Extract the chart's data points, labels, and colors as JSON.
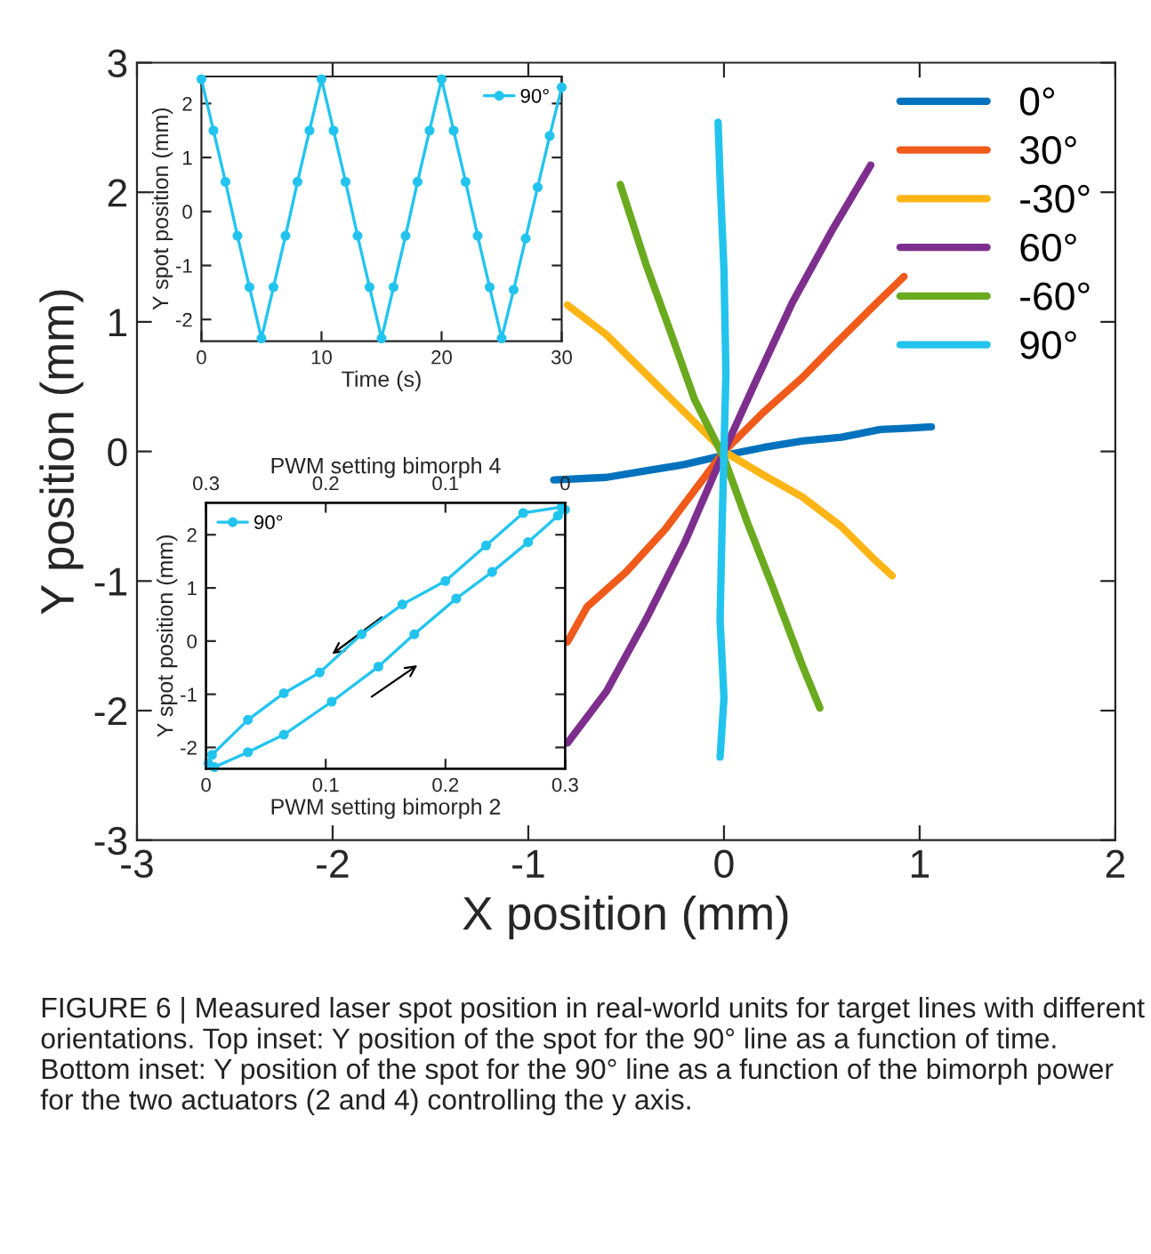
{
  "chart_data": [
    {
      "type": "line",
      "xlabel": "X position (mm)",
      "ylabel": "Y position (mm)",
      "xlim": [
        -3,
        2
      ],
      "ylim": [
        -3,
        3
      ],
      "xticks": [
        -3,
        -2,
        -1,
        0,
        1,
        2
      ],
      "yticks": [
        -3,
        -2,
        -1,
        0,
        1,
        2,
        3
      ],
      "grid": false,
      "legend": "top right",
      "series": [
        {
          "name": "0°",
          "color": "#0072bd",
          "x": [
            -0.87,
            -0.6,
            -0.4,
            -0.2,
            0,
            0.2,
            0.4,
            0.6,
            0.8,
            0.95,
            1.06
          ],
          "values": [
            -0.22,
            -0.2,
            -0.15,
            -0.1,
            -0.03,
            0.03,
            0.08,
            0.11,
            0.17,
            0.18,
            0.19
          ]
        },
        {
          "name": "30°",
          "color": "#f05a1a",
          "x": [
            -0.8,
            -0.7,
            -0.5,
            -0.3,
            -0.1,
            0,
            0.2,
            0.4,
            0.55,
            0.75,
            0.92
          ],
          "values": [
            -1.47,
            -1.2,
            -0.93,
            -0.6,
            -0.2,
            0,
            0.3,
            0.57,
            0.8,
            1.1,
            1.35
          ]
        },
        {
          "name": "-30°",
          "color": "#fdb515",
          "x": [
            -0.8,
            -0.6,
            -0.4,
            -0.2,
            0,
            0.2,
            0.4,
            0.6,
            0.78,
            0.86
          ],
          "values": [
            1.13,
            0.9,
            0.6,
            0.3,
            0,
            -0.18,
            -0.35,
            -0.58,
            -0.85,
            -0.96
          ]
        },
        {
          "name": "60°",
          "color": "#7e2f8e",
          "x": [
            -0.8,
            -0.6,
            -0.4,
            -0.2,
            0,
            0.15,
            0.35,
            0.55,
            0.75
          ],
          "values": [
            -2.25,
            -1.85,
            -1.3,
            -0.7,
            0,
            0.5,
            1.15,
            1.7,
            2.21
          ]
        },
        {
          "name": "-60°",
          "color": "#6aaa1e",
          "x": [
            -0.53,
            -0.4,
            -0.28,
            -0.15,
            0,
            0.12,
            0.25,
            0.4,
            0.49
          ],
          "values": [
            2.06,
            1.45,
            0.95,
            0.4,
            -0.05,
            -0.55,
            -1.05,
            -1.65,
            -1.98
          ]
        },
        {
          "name": "90°",
          "color": "#22c4ee",
          "x": [
            -0.03,
            -0.02,
            0.0,
            0.01,
            0.0,
            -0.01,
            -0.02,
            0.0,
            -0.02
          ],
          "values": [
            2.54,
            2.1,
            1.4,
            0.6,
            0,
            -0.6,
            -1.3,
            -1.9,
            -2.36
          ]
        }
      ],
      "annotations": [
        "FIGURE 6 | Measured laser spot position in real-world units for target lines with different orientations. Top inset: Y position of the spot for the 90° line as a function of time. Bottom inset: Y position of the spot for the 90° line as a function of the bimorph power for the two actuators (2 and 4) controlling the y axis."
      ]
    },
    {
      "type": "line",
      "xlabel": "Time (s)",
      "ylabel": "Y spot position (mm)",
      "xlim": [
        0,
        30
      ],
      "ylim": [
        -2.4,
        2.5
      ],
      "xticks": [
        0,
        10,
        20,
        30
      ],
      "yticks": [
        -2,
        -1,
        0,
        1,
        2
      ],
      "grid": false,
      "legend": "top right",
      "marker": "circle",
      "series": [
        {
          "name": "90°",
          "color": "#22c4ee",
          "x": [
            0,
            1,
            2,
            3,
            4,
            5,
            6,
            7,
            8,
            9,
            10,
            11,
            12,
            13,
            14,
            15,
            16,
            17,
            18,
            19,
            20,
            21,
            22,
            23,
            24,
            25,
            26,
            27,
            28,
            29,
            30
          ],
          "values": [
            2.45,
            1.5,
            0.55,
            -0.45,
            -1.4,
            -2.35,
            -1.4,
            -0.45,
            0.55,
            1.5,
            2.45,
            1.5,
            0.55,
            -0.45,
            -1.4,
            -2.35,
            -1.4,
            -0.45,
            0.55,
            1.5,
            2.45,
            1.5,
            0.55,
            -0.45,
            -1.4,
            -2.35,
            -1.45,
            -0.5,
            0.45,
            1.4,
            2.3
          ]
        }
      ]
    },
    {
      "type": "line",
      "xlabel": "PWM setting bimorph 2",
      "x2label": "PWM setting bimorph 4",
      "ylabel": "Y spot position (mm)",
      "xlim": [
        0,
        0.3
      ],
      "xticks": [
        0,
        0.1,
        0.2,
        0.3
      ],
      "x2lim": [
        0.3,
        0
      ],
      "x2ticks": [
        0.3,
        0.2,
        0.1,
        0
      ],
      "ylim": [
        -2.4,
        2.6
      ],
      "yticks": [
        -2,
        -1,
        0,
        1,
        2
      ],
      "grid": false,
      "legend": "top left",
      "marker": "circle",
      "series": [
        {
          "name": "90°",
          "color": "#22c4ee",
          "x": [
            0.297,
            0.265,
            0.234,
            0.2,
            0.164,
            0.13,
            0.095,
            0.065,
            0.035,
            0.005,
            0.002,
            0.007,
            0.035,
            0.065,
            0.105,
            0.144,
            0.174,
            0.209,
            0.239,
            0.269,
            0.294,
            0.3
          ],
          "values": [
            2.52,
            2.41,
            1.8,
            1.13,
            0.69,
            0.13,
            -0.59,
            -0.98,
            -1.48,
            -2.14,
            -2.3,
            -2.37,
            -2.09,
            -1.76,
            -1.14,
            -0.48,
            0.13,
            0.8,
            1.3,
            1.86,
            2.36,
            2.47
          ]
        }
      ]
    }
  ]
}
